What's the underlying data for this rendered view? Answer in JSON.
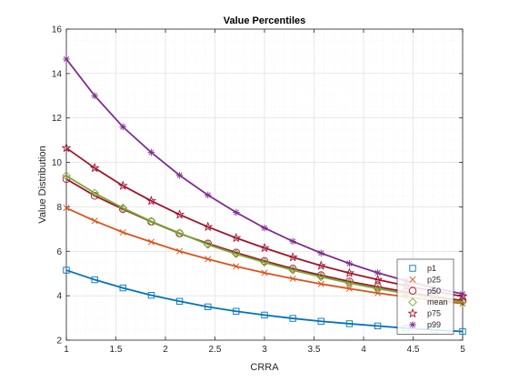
{
  "chart_data": {
    "type": "line",
    "title": "Value Percentiles",
    "xlabel": "CRRA",
    "ylabel": "Value Distribution",
    "xlim": [
      1,
      5
    ],
    "ylim": [
      2,
      16
    ],
    "xticks": [
      "1",
      "1.5",
      "2",
      "2.5",
      "3",
      "3.5",
      "4",
      "4.5",
      "5"
    ],
    "yticks": [
      "2",
      "4",
      "6",
      "8",
      "10",
      "12",
      "14",
      "16"
    ],
    "grid": true,
    "legend_position": "bottom-right",
    "x": [
      1.0,
      1.286,
      1.571,
      1.857,
      2.143,
      2.429,
      2.714,
      3.0,
      3.286,
      3.571,
      3.857,
      4.143,
      4.429,
      4.714,
      5.0
    ],
    "series": [
      {
        "name": "p1",
        "marker": "square",
        "color": "#0072bd",
        "values": [
          5.15,
          4.72,
          4.35,
          4.02,
          3.75,
          3.5,
          3.3,
          3.13,
          2.98,
          2.85,
          2.74,
          2.64,
          2.54,
          2.46,
          2.39
        ]
      },
      {
        "name": "p25",
        "marker": "x",
        "color": "#d95319",
        "values": [
          7.95,
          7.37,
          6.85,
          6.42,
          6.0,
          5.65,
          5.32,
          5.03,
          4.77,
          4.53,
          4.32,
          4.12,
          3.95,
          3.79,
          3.65
        ]
      },
      {
        "name": "p50",
        "marker": "o",
        "color": "#a2142f",
        "values": [
          9.25,
          8.5,
          7.9,
          7.33,
          6.8,
          6.35,
          5.94,
          5.56,
          5.22,
          4.92,
          4.64,
          4.4,
          4.17,
          3.96,
          3.78
        ]
      },
      {
        "name": "mean",
        "marker": "diamond",
        "color": "#77ac30",
        "values": [
          9.4,
          8.62,
          7.95,
          7.35,
          6.82,
          6.3,
          5.88,
          5.5,
          5.15,
          4.85,
          4.57,
          4.32,
          4.1,
          3.9,
          3.72
        ]
      },
      {
        "name": "p75",
        "marker": "star",
        "color": "#a2142f",
        "values": [
          10.65,
          9.75,
          8.95,
          8.27,
          7.65,
          7.1,
          6.6,
          6.15,
          5.73,
          5.35,
          5.02,
          4.72,
          4.45,
          4.2,
          3.97
        ]
      },
      {
        "name": "p99",
        "marker": "asterisk",
        "color": "#7e2f8e",
        "values": [
          14.65,
          13.0,
          11.6,
          10.45,
          9.42,
          8.53,
          7.75,
          7.05,
          6.45,
          5.92,
          5.45,
          5.03,
          4.67,
          4.35,
          4.08
        ]
      }
    ]
  }
}
